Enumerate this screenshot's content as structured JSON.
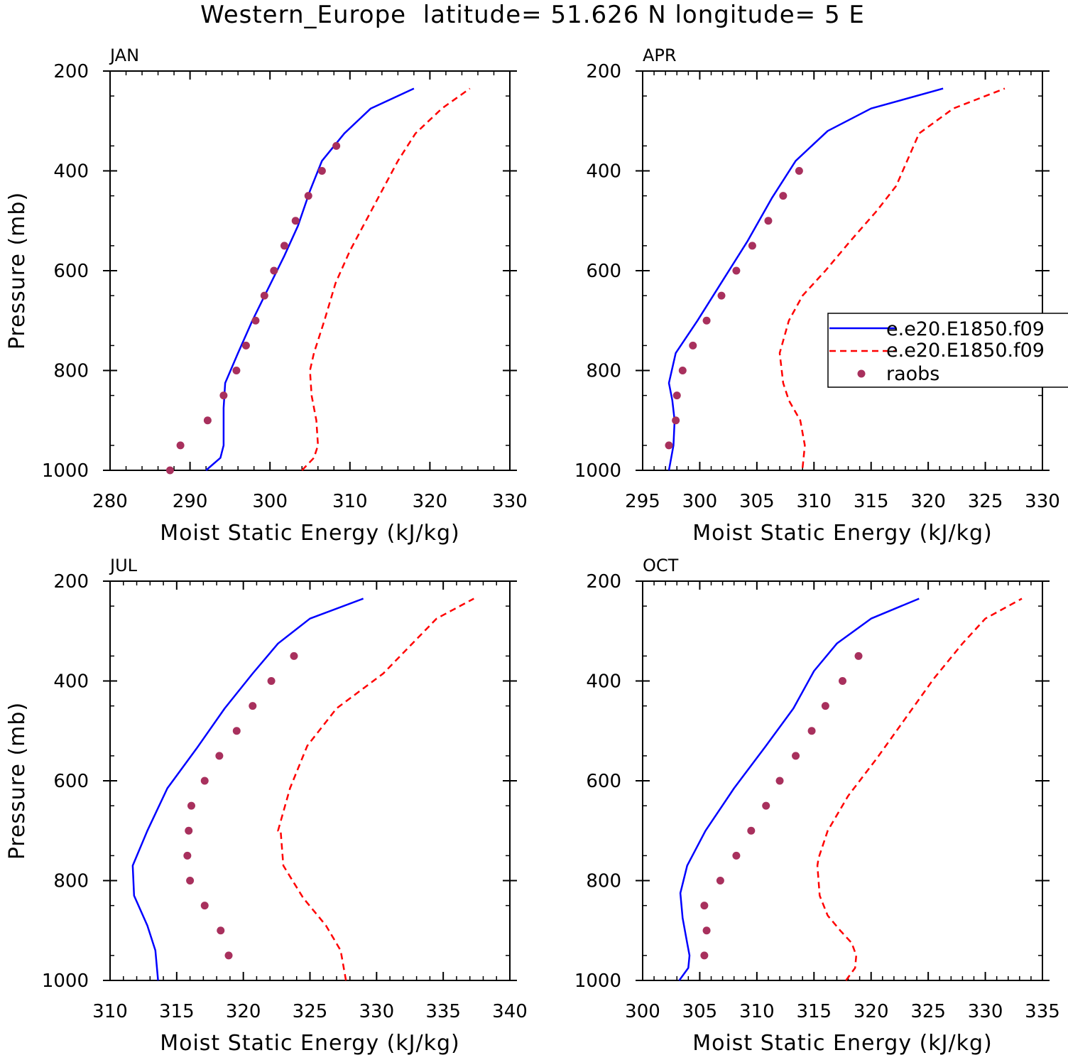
{
  "title": "Western_Europe  latitude= 51.626 N longitude= 5 E",
  "colors": {
    "model1": "#0000ff",
    "model2": "#ff0000",
    "obs": "#a8305d",
    "axis": "#000000"
  },
  "legend": {
    "model1_label": "e.e20.E1850.f09",
    "model2_label": "e.e20.E1850.f09",
    "obs_label": "raobs"
  },
  "chart_data": [
    {
      "type": "line",
      "panel": "JAN",
      "xlabel": "Moist Static Energy (kJ/kg)",
      "ylabel": "Pressure (mb)",
      "xlim": [
        280,
        330
      ],
      "ylim": [
        1000,
        200
      ],
      "xticks": [
        280,
        290,
        300,
        310,
        320,
        330
      ],
      "yticks": [
        200,
        400,
        600,
        800,
        1000
      ],
      "series": [
        {
          "name": "e.e20.E1850.f09",
          "style": "solid",
          "x": [
            292.0,
            293.8,
            294.2,
            294.2,
            294.2,
            294.4,
            296.0,
            297.8,
            299.8,
            301.8,
            303.5,
            305.0,
            306.5,
            309.3,
            312.6,
            318.0
          ],
          "y": [
            1000,
            975,
            950,
            925,
            875,
            825,
            765,
            700,
            635,
            570,
            510,
            440,
            380,
            325,
            275,
            235
          ]
        },
        {
          "name": "e.e20.E1850.f09",
          "style": "dashed",
          "x": [
            304.0,
            305.5,
            306.0,
            305.8,
            305.2,
            305.0,
            305.5,
            306.8,
            308.2,
            310.0,
            312.0,
            314.0,
            316.0,
            318.2,
            321.5,
            325.0
          ],
          "y": [
            1000,
            975,
            950,
            900,
            850,
            800,
            765,
            700,
            625,
            560,
            500,
            440,
            380,
            325,
            275,
            235
          ]
        },
        {
          "name": "raobs",
          "style": "markers",
          "x": [
            287.5,
            288.8,
            292.2,
            294.2,
            295.8,
            297.0,
            298.2,
            299.3,
            300.5,
            301.8,
            303.2,
            304.8,
            306.5,
            308.3
          ],
          "y": [
            1000,
            950,
            900,
            850,
            800,
            750,
            700,
            650,
            600,
            550,
            500,
            450,
            400,
            350
          ]
        }
      ]
    },
    {
      "type": "line",
      "panel": "APR",
      "xlabel": "Moist Static Energy (kJ/kg)",
      "ylabel": "",
      "xlim": [
        295,
        330
      ],
      "ylim": [
        1000,
        200
      ],
      "xticks": [
        295,
        300,
        305,
        310,
        315,
        320,
        325,
        330
      ],
      "yticks": [
        200,
        400,
        600,
        800,
        1000
      ],
      "series": [
        {
          "name": "e.e20.E1850.f09",
          "style": "solid",
          "x": [
            297.3,
            297.7,
            297.8,
            297.6,
            297.3,
            297.9,
            299.8,
            302.0,
            304.2,
            306.3,
            308.4,
            311.2,
            315.0,
            321.3
          ],
          "y": [
            1000,
            950,
            900,
            860,
            825,
            765,
            700,
            620,
            540,
            455,
            380,
            320,
            275,
            235
          ]
        },
        {
          "name": "e.e20.E1850.f09",
          "style": "dashed",
          "x": [
            309.0,
            309.2,
            308.8,
            307.8,
            307.3,
            307.0,
            307.8,
            309.0,
            311.0,
            313.2,
            315.5,
            317.2,
            319.2,
            322.2,
            326.7
          ],
          "y": [
            995,
            950,
            900,
            860,
            825,
            765,
            700,
            650,
            600,
            540,
            480,
            430,
            325,
            275,
            235
          ]
        },
        {
          "name": "raobs",
          "style": "markers",
          "x": [
            297.3,
            297.9,
            298.0,
            298.5,
            299.4,
            300.6,
            301.9,
            303.2,
            304.6,
            306.0,
            307.3,
            308.7
          ],
          "y": [
            950,
            900,
            850,
            800,
            750,
            700,
            650,
            600,
            550,
            500,
            450,
            400
          ]
        }
      ]
    },
    {
      "type": "line",
      "panel": "JUL",
      "xlabel": "Moist Static Energy (kJ/kg)",
      "ylabel": "Pressure (mb)",
      "xlim": [
        310,
        340
      ],
      "ylim": [
        1000,
        200
      ],
      "xticks": [
        310,
        315,
        320,
        325,
        330,
        335,
        340
      ],
      "yticks": [
        200,
        400,
        600,
        800,
        1000
      ],
      "series": [
        {
          "name": "e.e20.E1850.f09",
          "style": "solid",
          "x": [
            313.6,
            313.4,
            312.8,
            311.8,
            311.7,
            312.8,
            314.3,
            316.5,
            318.6,
            320.7,
            322.6,
            325.0,
            329.0
          ],
          "y": [
            1000,
            940,
            890,
            830,
            770,
            700,
            615,
            535,
            455,
            385,
            325,
            275,
            235
          ]
        },
        {
          "name": "e.e20.E1850.f09",
          "style": "dashed",
          "x": [
            327.7,
            327.3,
            326.2,
            324.5,
            323.0,
            322.8,
            322.6,
            323.5,
            324.8,
            327.0,
            330.5,
            334.5,
            337.3
          ],
          "y": [
            1000,
            940,
            890,
            835,
            770,
            700,
            700,
            615,
            530,
            455,
            385,
            275,
            235
          ]
        },
        {
          "name": "raobs",
          "style": "markers",
          "x": [
            318.9,
            318.3,
            317.1,
            316.0,
            315.8,
            315.9,
            316.1,
            317.1,
            318.2,
            319.5,
            320.7,
            322.1,
            323.8
          ],
          "y": [
            950,
            900,
            850,
            800,
            750,
            700,
            650,
            600,
            550,
            500,
            450,
            400,
            350
          ]
        }
      ]
    },
    {
      "type": "line",
      "panel": "OCT",
      "xlabel": "Moist Static Energy (kJ/kg)",
      "ylabel": "",
      "xlim": [
        300,
        335
      ],
      "ylim": [
        1000,
        200
      ],
      "xticks": [
        300,
        305,
        310,
        315,
        320,
        325,
        330,
        335
      ],
      "yticks": [
        200,
        400,
        600,
        800,
        1000
      ],
      "series": [
        {
          "name": "e.e20.E1850.f09",
          "style": "solid",
          "x": [
            303.2,
            304.0,
            304.1,
            303.9,
            303.5,
            303.3,
            303.9,
            305.5,
            308.0,
            310.8,
            313.2,
            315.0,
            317.0,
            320.0,
            324.2
          ],
          "y": [
            1000,
            975,
            950,
            925,
            875,
            825,
            770,
            700,
            615,
            530,
            455,
            380,
            325,
            275,
            235
          ]
        },
        {
          "name": "e.e20.E1850.f09",
          "style": "dashed",
          "x": [
            317.8,
            318.6,
            318.7,
            318.3,
            317.3,
            316.2,
            315.5,
            315.3,
            315.4,
            316.2,
            318.0,
            320.5,
            323.0,
            325.5,
            328.0,
            330.0,
            333.2
          ],
          "y": [
            1000,
            975,
            950,
            925,
            900,
            870,
            830,
            770,
            755,
            700,
            630,
            555,
            475,
            395,
            325,
            275,
            235
          ]
        },
        {
          "name": "raobs",
          "style": "markers",
          "x": [
            305.4,
            305.6,
            305.4,
            306.8,
            308.2,
            309.5,
            310.8,
            312.0,
            313.4,
            314.8,
            316.0,
            317.5,
            318.9
          ],
          "y": [
            950,
            900,
            850,
            800,
            750,
            700,
            650,
            600,
            550,
            500,
            450,
            400,
            350
          ]
        }
      ]
    }
  ]
}
